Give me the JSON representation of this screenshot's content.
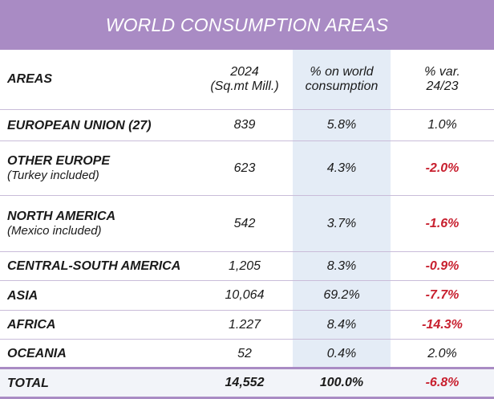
{
  "title": "WORLD CONSUMPTION AREAS",
  "columns": {
    "area": "AREAS",
    "value_line1": "2024",
    "value_line2": "(Sq.mt Mill.)",
    "pct_line1": "% on world",
    "pct_line2": "consumption",
    "var_line1": "% var.",
    "var_line2": "24/23"
  },
  "rows": [
    {
      "area": "EUROPEAN UNION (27)",
      "note": "",
      "value": "839",
      "pct": "5.8%",
      "var": "1.0%"
    },
    {
      "area": "OTHER EUROPE",
      "note": "(Turkey included)",
      "value": "623",
      "pct": "4.3%",
      "var": "-2.0%"
    },
    {
      "area": "NORTH AMERICA",
      "note": "(Mexico included)",
      "value": "542",
      "pct": "3.7%",
      "var": "-1.6%"
    },
    {
      "area": "CENTRAL-SOUTH AMERICA",
      "note": "",
      "value": "1,205",
      "pct": "8.3%",
      "var": "-0.9%"
    },
    {
      "area": "ASIA",
      "note": "",
      "value": "10,064",
      "pct": "69.2%",
      "var": "-7.7%"
    },
    {
      "area": "AFRICA",
      "note": "",
      "value": "1.227",
      "pct": "8.4%",
      "var": "-14.3%"
    },
    {
      "area": "OCEANIA",
      "note": "",
      "value": "52",
      "pct": "0.4%",
      "var": "2.0%"
    }
  ],
  "total": {
    "area": "TOTAL",
    "value": "14,552",
    "pct": "100.0%",
    "var": "-6.8%"
  },
  "colors": {
    "header_bg": "#a98bc4",
    "negative": "#c8202f",
    "shade": "#e4ecf6"
  }
}
